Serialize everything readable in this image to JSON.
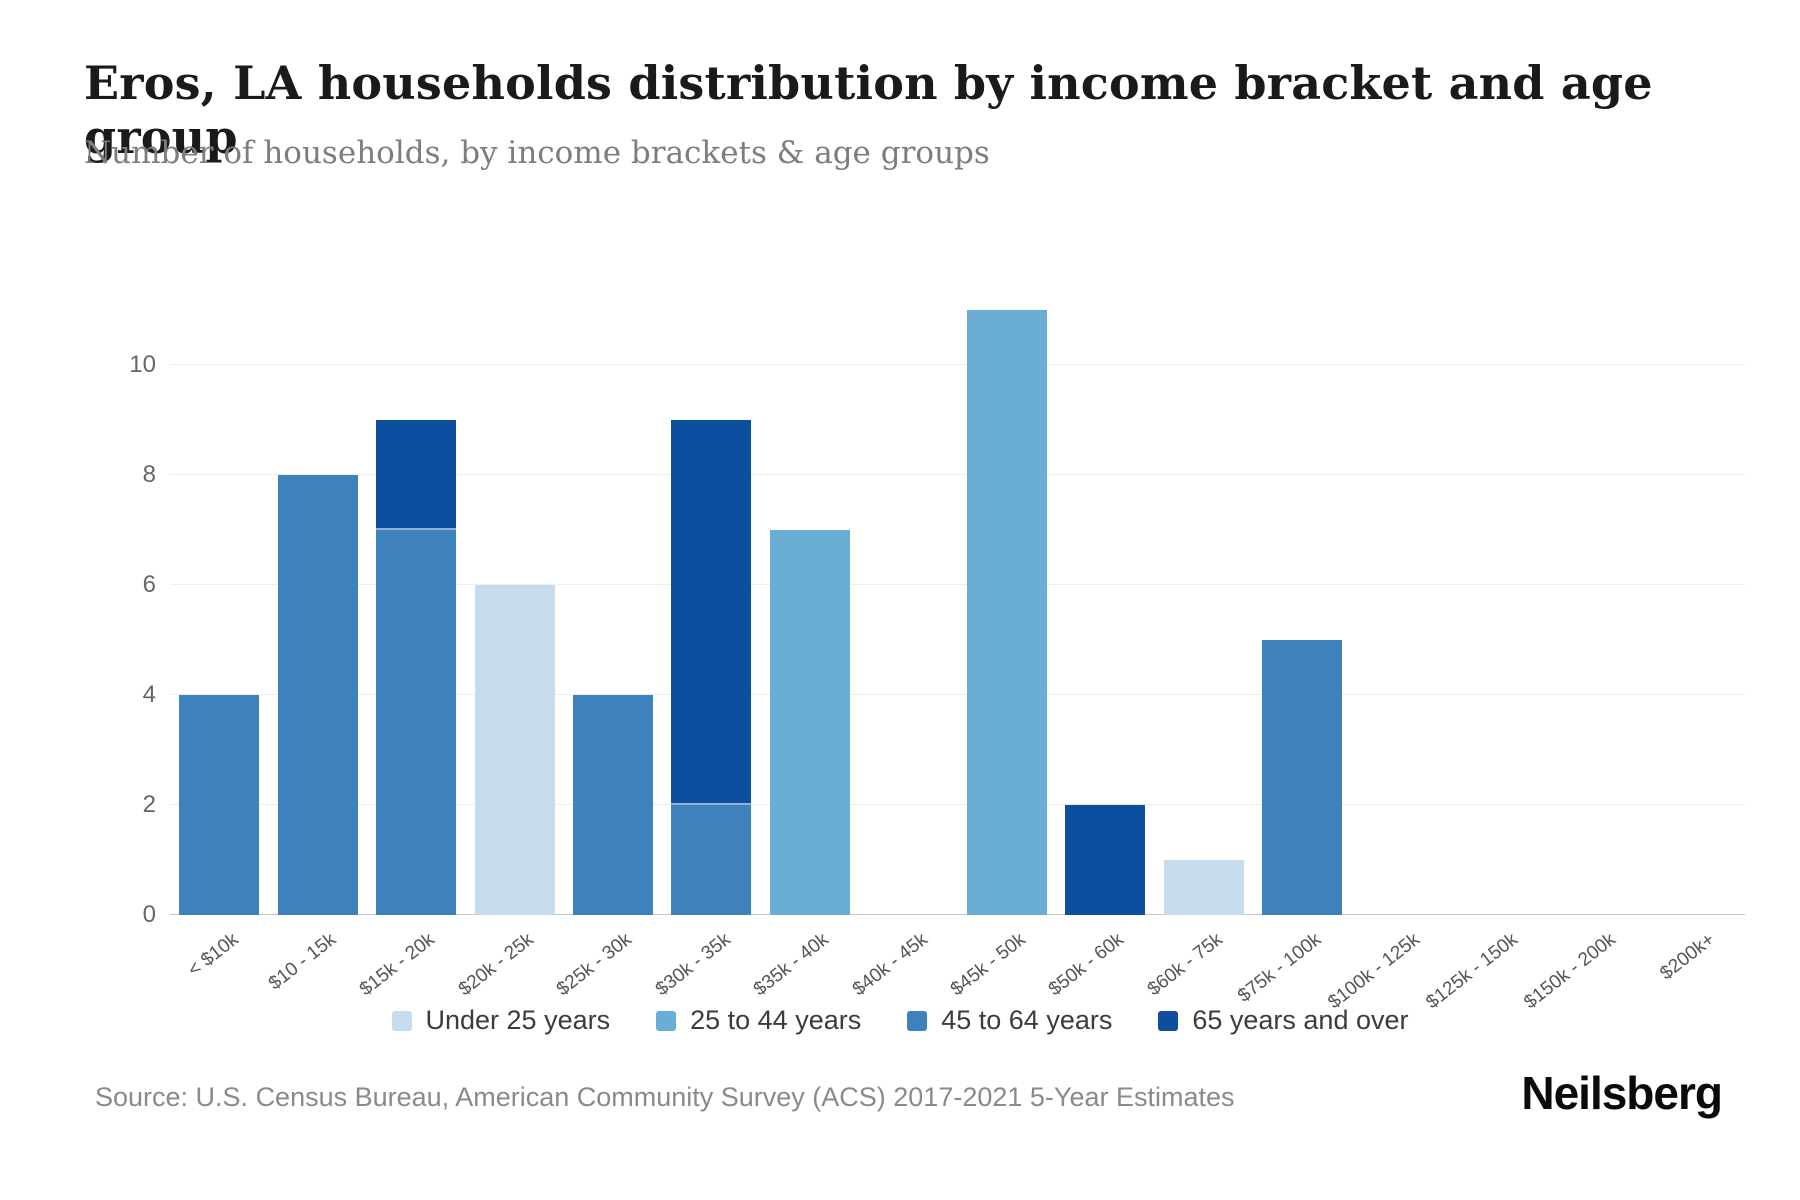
{
  "header": {
    "title": "Eros, LA households distribution by income bracket and age group",
    "subtitle": "Number of households, by income brackets & age groups"
  },
  "footer": {
    "source": "Source: U.S. Census Bureau, American Community Survey (ACS) 2017-2021 5-Year Estimates",
    "logo": "Neilsberg"
  },
  "chart_data": {
    "type": "bar",
    "stacked": true,
    "title": "Eros, LA households distribution by income bracket and age group",
    "subtitle": "Number of households, by income brackets & age groups",
    "xlabel": "",
    "ylabel": "",
    "grid": "horizontal",
    "legend_position": "bottom",
    "yticks": [
      0,
      2,
      4,
      6,
      8,
      10
    ],
    "ylim": [
      0,
      11.27
    ],
    "categories": [
      "< $10k",
      "$10 - 15k",
      "$15k - 20k",
      "$20k - 25k",
      "$25k - 30k",
      "$30k - 35k",
      "$35k - 40k",
      "$40k - 45k",
      "$45k - 50k",
      "$50k - 60k",
      "$60k - 75k",
      "$75k - 100k",
      "$100k - 125k",
      "$125k - 150k",
      "$150k - 200k",
      "$200k+"
    ],
    "series": [
      {
        "name": "Under 25 years",
        "color": "#c6dbec",
        "values": [
          0,
          0,
          0,
          6,
          0,
          0,
          0,
          0,
          0,
          0,
          1,
          0,
          0,
          0,
          0,
          0
        ]
      },
      {
        "name": "25 to 44 years",
        "color": "#6aaed6",
        "values": [
          0,
          0,
          0,
          0,
          0,
          0,
          7,
          0,
          11,
          0,
          0,
          0,
          0,
          0,
          0,
          0
        ]
      },
      {
        "name": "45 to 64 years",
        "color": "#3d82bd",
        "values": [
          4,
          8,
          7,
          0,
          4,
          2,
          0,
          0,
          0,
          0,
          0,
          5,
          0,
          0,
          0,
          0
        ]
      },
      {
        "name": "65 years and over",
        "color": "#0b4f9e",
        "values": [
          0,
          0,
          2,
          0,
          0,
          7,
          0,
          0,
          0,
          2,
          0,
          0,
          0,
          0,
          0,
          0
        ]
      }
    ]
  }
}
